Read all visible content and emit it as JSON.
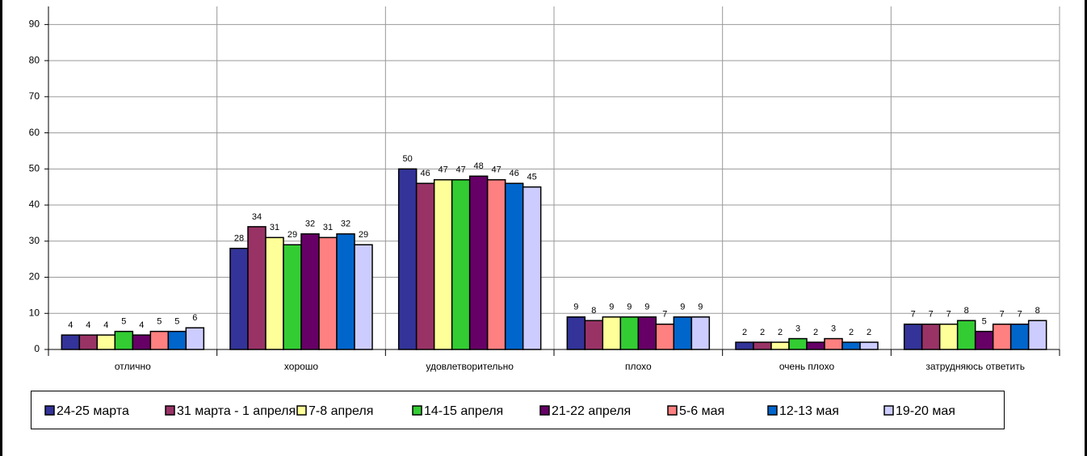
{
  "chart_data": {
    "type": "bar",
    "categories": [
      "отлично",
      "хорошо",
      "удовлетворительно",
      "плохо",
      "очень плохо",
      "затрудняюсь ответить"
    ],
    "series": [
      {
        "name": "24-25 марта",
        "color": "#333399",
        "values": [
          4,
          28,
          50,
          9,
          2,
          7
        ]
      },
      {
        "name": "31 марта - 1 апреля",
        "color": "#993366",
        "values": [
          4,
          34,
          46,
          8,
          2,
          7
        ]
      },
      {
        "name": "7-8 апреля",
        "color": "#ffff99",
        "values": [
          4,
          31,
          47,
          9,
          2,
          7
        ]
      },
      {
        "name": "14-15 апреля",
        "color": "#33cc33",
        "values": [
          5,
          29,
          47,
          9,
          3,
          8
        ]
      },
      {
        "name": "21-22 апреля",
        "color": "#660066",
        "values": [
          4,
          32,
          48,
          9,
          2,
          5
        ]
      },
      {
        "name": "5-6 мая",
        "color": "#ff8080",
        "values": [
          5,
          31,
          47,
          7,
          3,
          7
        ]
      },
      {
        "name": "12-13 мая",
        "color": "#0066cc",
        "values": [
          5,
          32,
          46,
          9,
          2,
          7
        ]
      },
      {
        "name": "19-20 мая",
        "color": "#ccccff",
        "values": [
          6,
          29,
          45,
          9,
          2,
          8
        ]
      }
    ],
    "ylim": [
      0,
      95
    ],
    "yticks": [
      0,
      10,
      20,
      30,
      40,
      50,
      60,
      70,
      80,
      90
    ],
    "grid": true,
    "legend": "bottom"
  }
}
